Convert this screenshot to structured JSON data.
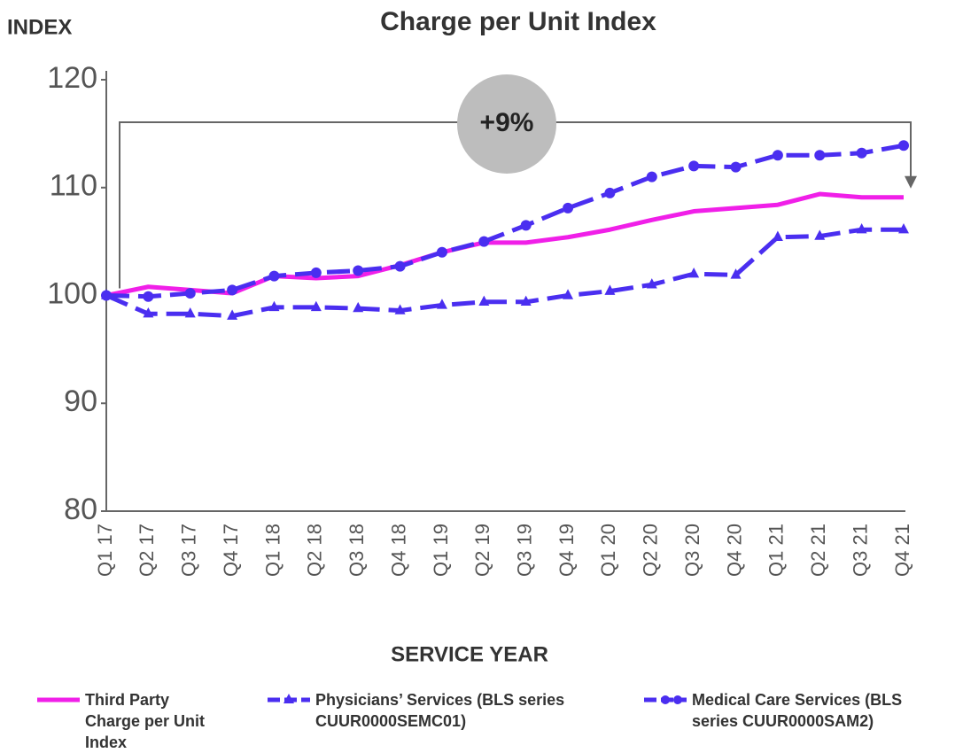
{
  "chart_data": {
    "type": "line",
    "title": "Charge per Unit Index",
    "y_label": "INDEX",
    "x_label": "SERVICE YEAR",
    "annotation": "+9%",
    "categories": [
      "Q1 17",
      "Q2 17",
      "Q3 17",
      "Q4 17",
      "Q1 18",
      "Q2 18",
      "Q3 18",
      "Q4 18",
      "Q1 19",
      "Q2 19",
      "Q3 19",
      "Q4 19",
      "Q1 20",
      "Q2 20",
      "Q3 20",
      "Q4 20",
      "Q1 21",
      "Q2 21",
      "Q3 21",
      "Q4 21"
    ],
    "series": [
      {
        "name": "Third Party Charge per Unit Index",
        "color": "#f01fe8",
        "marker": "none",
        "dash": false,
        "values": [
          100,
          100.8,
          100.5,
          100.2,
          101.8,
          101.6,
          101.8,
          102.8,
          104,
          104.9,
          104.9,
          105.4,
          106.1,
          107,
          107.8,
          108.1,
          108.4,
          109.4,
          109.1,
          109.1
        ]
      },
      {
        "name": "Physicians’ Services (BLS series CUUR0000SEMC01)",
        "color": "#4a2ef0",
        "marker": "triangle",
        "dash": true,
        "values": [
          100,
          98.3,
          98.3,
          98.1,
          98.9,
          98.9,
          98.8,
          98.6,
          99.1,
          99.4,
          99.4,
          100,
          100.4,
          101,
          102,
          101.9,
          105.4,
          105.5,
          106.1,
          106.1
        ]
      },
      {
        "name": "Medical Care Services (BLS series CUUR0000SAM2)",
        "color": "#4a2ef0",
        "marker": "circle",
        "dash": true,
        "values": [
          100,
          99.9,
          100.2,
          100.5,
          101.8,
          102.1,
          102.3,
          102.7,
          104,
          105,
          106.5,
          108.1,
          109.5,
          111,
          112,
          111.9,
          113,
          113,
          113.2,
          113.9
        ]
      }
    ],
    "ylim": [
      80,
      120
    ],
    "yticks": [
      80,
      90,
      100,
      110,
      120
    ],
    "grid": false
  }
}
